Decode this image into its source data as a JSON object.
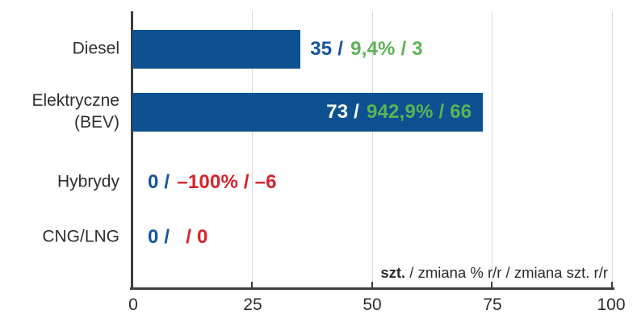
{
  "chart_data": {
    "type": "bar",
    "orientation": "horizontal",
    "title": "",
    "categories": [
      "Diesel",
      "Elektryczne (BEV)",
      "Hybrydy",
      "CNG/LNG"
    ],
    "values": [
      35,
      73,
      0,
      0
    ],
    "series": [
      {
        "name": "szt.",
        "values": [
          35,
          73,
          0,
          0
        ]
      },
      {
        "name": "zmiana % r/r",
        "values": [
          "9,4%",
          "942,9%",
          "–100%",
          ""
        ]
      },
      {
        "name": "zmiana szt. r/r",
        "values": [
          3,
          66,
          -6,
          0
        ]
      }
    ],
    "xlim": [
      0,
      100
    ],
    "x_ticks": [
      "0",
      "25",
      "50",
      "75",
      "100"
    ],
    "grid": "vertical-gridlines-at-25-50-75-100",
    "legend_position": "none",
    "axis_note": "szt. / zmiana % r/r / zmiana szt. r/r"
  },
  "rows": [
    {
      "category": "Diesel",
      "value_label": "35 /",
      "change_label": "9,4% / 3",
      "change_sentiment": "positive",
      "label_placement": "outside-bar"
    },
    {
      "category": "Elektryczne (BEV)",
      "value_label": "73 /",
      "change_label": "942,9% / 66",
      "change_sentiment": "positive",
      "label_placement": "inside-bar"
    },
    {
      "category": "Hybrydy",
      "value_label": "0 /",
      "change_label": "–100% / –6",
      "change_sentiment": "negative",
      "label_placement": "no-bar"
    },
    {
      "category": "CNG/LNG",
      "value_label": "0 /",
      "change_label": "/ 0",
      "change_sentiment": "negative",
      "label_placement": "no-bar"
    }
  ],
  "axis": {
    "note_bold": "szt.",
    "note_rest": " / zmiana % r/r / zmiana szt. r/r"
  },
  "colors": {
    "bar": "#0d5191",
    "value_blue": "#15549a",
    "value_white": "#ffffff",
    "positive_green": "#5bb353",
    "negative_red": "#d6232b",
    "axis_line": "#3c3c3c",
    "gridline": "#d9d9d9",
    "text": "#2e2e2e"
  }
}
